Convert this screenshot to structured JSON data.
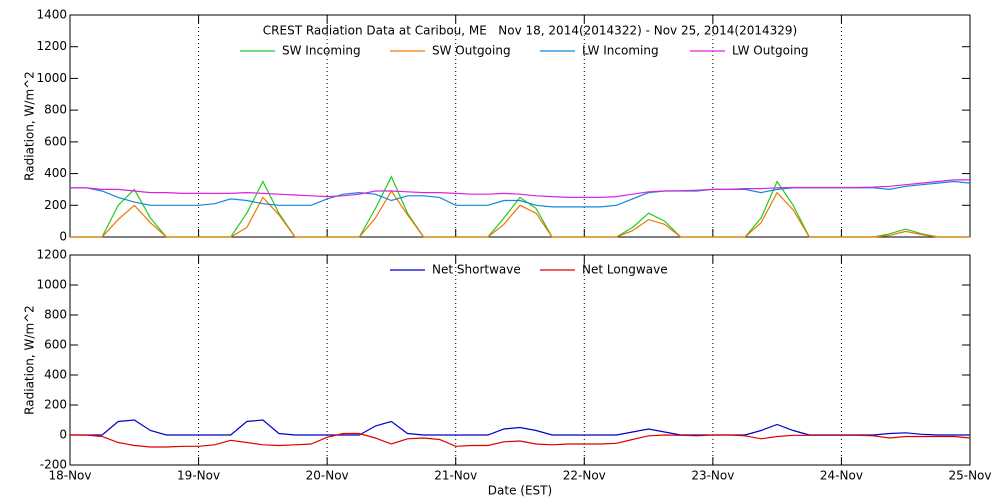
{
  "chart_data": [
    {
      "type": "line",
      "title": "CREST Radiation Data at Caribou, ME   Nov 18, 2014(2014322) - Nov 25, 2014(2014329)",
      "ylabel": "Radiation, W/m^2",
      "xlim": [
        0,
        7
      ],
      "xticks": [
        0,
        1,
        2,
        3,
        4,
        5,
        6,
        7
      ],
      "ylim": [
        0,
        1400
      ],
      "yticks": [
        0,
        200,
        400,
        600,
        800,
        1000,
        1200,
        1400
      ],
      "grid": true,
      "x": [
        0,
        0.125,
        0.25,
        0.375,
        0.5,
        0.625,
        0.75,
        0.875,
        1,
        1.125,
        1.25,
        1.375,
        1.5,
        1.625,
        1.75,
        1.875,
        2,
        2.125,
        2.25,
        2.375,
        2.5,
        2.625,
        2.75,
        2.875,
        3,
        3.125,
        3.25,
        3.375,
        3.5,
        3.625,
        3.75,
        3.875,
        4,
        4.125,
        4.25,
        4.375,
        4.5,
        4.625,
        4.75,
        4.875,
        5,
        5.125,
        5.25,
        5.375,
        5.5,
        5.625,
        5.75,
        5.875,
        6,
        6.125,
        6.25,
        6.375,
        6.5,
        6.625,
        6.75,
        6.875,
        7
      ],
      "series": [
        {
          "name": "SW Incoming",
          "color": "#22cc22",
          "values": [
            0,
            0,
            0,
            200,
            300,
            120,
            0,
            0,
            0,
            0,
            0,
            150,
            350,
            150,
            0,
            0,
            0,
            0,
            0,
            180,
            380,
            150,
            0,
            0,
            0,
            0,
            0,
            120,
            250,
            180,
            0,
            0,
            0,
            0,
            0,
            60,
            150,
            100,
            0,
            0,
            0,
            0,
            0,
            120,
            350,
            200,
            0,
            0,
            0,
            0,
            0,
            20,
            50,
            20,
            0,
            0,
            0
          ]
        },
        {
          "name": "SW Outgoing",
          "color": "#ee7700",
          "values": [
            0,
            0,
            0,
            110,
            200,
            90,
            0,
            0,
            0,
            0,
            0,
            60,
            250,
            140,
            0,
            0,
            0,
            0,
            0,
            120,
            290,
            140,
            0,
            0,
            0,
            0,
            0,
            80,
            200,
            150,
            0,
            0,
            0,
            0,
            0,
            40,
            110,
            80,
            0,
            0,
            0,
            0,
            0,
            90,
            280,
            170,
            0,
            0,
            0,
            0,
            0,
            10,
            35,
            15,
            0,
            0,
            0
          ]
        },
        {
          "name": "LW Incoming",
          "color": "#1188dd",
          "values": [
            310,
            310,
            290,
            250,
            220,
            200,
            200,
            200,
            200,
            210,
            240,
            230,
            210,
            200,
            200,
            200,
            240,
            270,
            280,
            270,
            230,
            260,
            260,
            250,
            200,
            200,
            200,
            230,
            230,
            200,
            190,
            190,
            190,
            190,
            200,
            240,
            280,
            290,
            290,
            290,
            300,
            300,
            300,
            280,
            300,
            310,
            310,
            310,
            310,
            310,
            310,
            300,
            320,
            330,
            340,
            350,
            340
          ]
        },
        {
          "name": "LW Outgoing",
          "color": "#dd22dd",
          "values": [
            310,
            310,
            300,
            300,
            290,
            280,
            280,
            275,
            275,
            275,
            275,
            280,
            275,
            270,
            265,
            260,
            255,
            260,
            270,
            290,
            290,
            285,
            280,
            280,
            275,
            270,
            270,
            275,
            270,
            260,
            255,
            250,
            250,
            250,
            255,
            270,
            285,
            290,
            292,
            295,
            300,
            300,
            305,
            305,
            310,
            312,
            312,
            312,
            312,
            312,
            315,
            320,
            330,
            340,
            350,
            360,
            360
          ]
        }
      ]
    },
    {
      "type": "line",
      "ylabel": "Radiation, W/m^2",
      "xlabel": "Date (EST)",
      "xlim": [
        0,
        7
      ],
      "xticks": [
        {
          "value": 0,
          "label": "18-Nov"
        },
        {
          "value": 1,
          "label": "19-Nov"
        },
        {
          "value": 2,
          "label": "20-Nov"
        },
        {
          "value": 3,
          "label": "21-Nov"
        },
        {
          "value": 4,
          "label": "22-Nov"
        },
        {
          "value": 5,
          "label": "23-Nov"
        },
        {
          "value": 6,
          "label": "24-Nov"
        },
        {
          "value": 7,
          "label": "25-Nov"
        }
      ],
      "ylim": [
        -200,
        1200
      ],
      "yticks": [
        -200,
        0,
        200,
        400,
        600,
        800,
        1000,
        1200
      ],
      "grid": true,
      "x": [
        0,
        0.125,
        0.25,
        0.375,
        0.5,
        0.625,
        0.75,
        0.875,
        1,
        1.125,
        1.25,
        1.375,
        1.5,
        1.625,
        1.75,
        1.875,
        2,
        2.125,
        2.25,
        2.375,
        2.5,
        2.625,
        2.75,
        2.875,
        3,
        3.125,
        3.25,
        3.375,
        3.5,
        3.625,
        3.75,
        3.875,
        4,
        4.125,
        4.25,
        4.375,
        4.5,
        4.625,
        4.75,
        4.875,
        5,
        5.125,
        5.25,
        5.375,
        5.5,
        5.625,
        5.75,
        5.875,
        6,
        6.125,
        6.25,
        6.375,
        6.5,
        6.625,
        6.75,
        6.875,
        7
      ],
      "series": [
        {
          "name": "Net Shortwave",
          "color": "#0000cc",
          "values": [
            0,
            0,
            0,
            90,
            100,
            30,
            0,
            0,
            0,
            0,
            0,
            90,
            100,
            10,
            0,
            0,
            0,
            0,
            0,
            60,
            90,
            10,
            0,
            0,
            0,
            0,
            0,
            40,
            50,
            30,
            0,
            0,
            0,
            0,
            0,
            20,
            40,
            20,
            0,
            0,
            0,
            0,
            0,
            30,
            70,
            30,
            0,
            0,
            0,
            0,
            0,
            10,
            15,
            5,
            0,
            0,
            0
          ]
        },
        {
          "name": "Net Longwave",
          "color": "#dd0000",
          "values": [
            0,
            0,
            -10,
            -50,
            -70,
            -80,
            -80,
            -75,
            -75,
            -65,
            -35,
            -50,
            -65,
            -70,
            -65,
            -60,
            -15,
            10,
            10,
            -20,
            -60,
            -25,
            -20,
            -30,
            -75,
            -70,
            -70,
            -45,
            -40,
            -60,
            -65,
            -60,
            -60,
            -60,
            -55,
            -30,
            -5,
            0,
            -2,
            -5,
            0,
            0,
            -5,
            -25,
            -10,
            -2,
            -2,
            -2,
            -2,
            -2,
            -5,
            -20,
            -10,
            -10,
            -10,
            -10,
            -20
          ]
        }
      ]
    }
  ]
}
